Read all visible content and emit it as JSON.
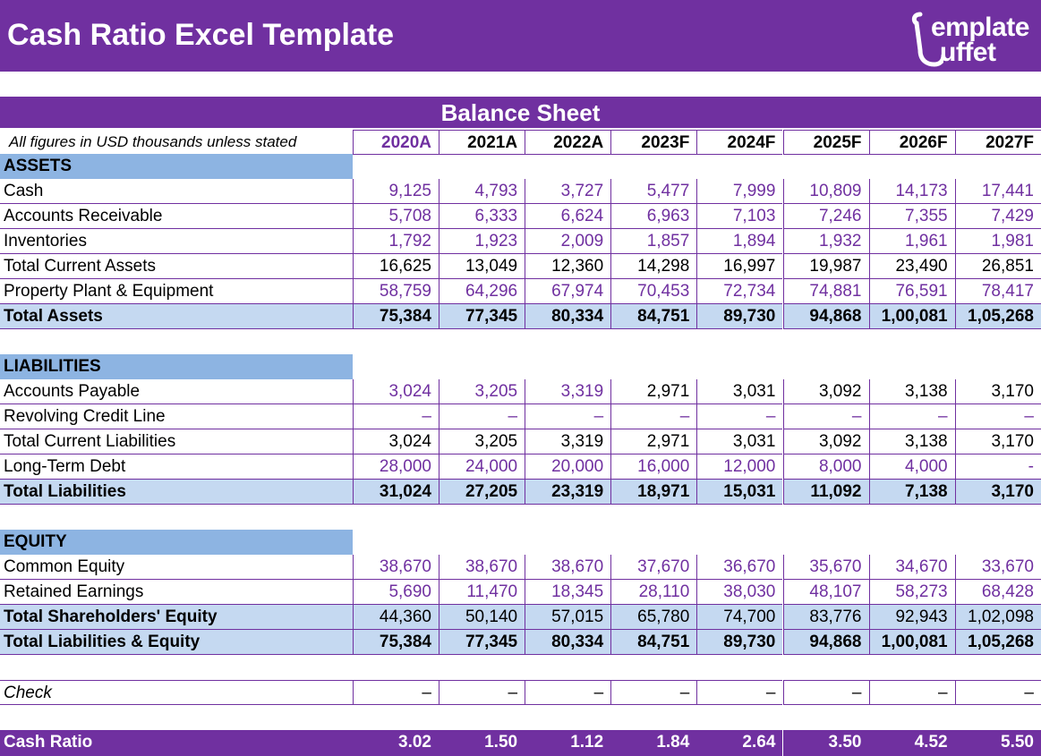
{
  "title": "Cash Ratio Excel Template",
  "logo": {
    "line1": "emplate",
    "line2": "uffet",
    "text": "Template Buffet"
  },
  "sheet_title": "Balance Sheet",
  "note": "All figures in USD thousands unless stated",
  "years": [
    "2020A",
    "2021A",
    "2022A",
    "2023F",
    "2024F",
    "2025F",
    "2026F",
    "2027F"
  ],
  "colors": {
    "brand": "#7030a0",
    "section": "#8db4e2",
    "total": "#c5d9f1"
  },
  "rows": [
    {
      "type": "section",
      "label": "ASSETS"
    },
    {
      "type": "input",
      "label": "Cash",
      "values": [
        "9,125",
        "4,793",
        "3,727",
        "5,477",
        "7,999",
        "10,809",
        "14,173",
        "17,441"
      ]
    },
    {
      "type": "input",
      "label": "Accounts Receivable",
      "values": [
        "5,708",
        "6,333",
        "6,624",
        "6,963",
        "7,103",
        "7,246",
        "7,355",
        "7,429"
      ]
    },
    {
      "type": "input",
      "label": "Inventories",
      "values": [
        "1,792",
        "1,923",
        "2,009",
        "1,857",
        "1,894",
        "1,932",
        "1,961",
        "1,981"
      ]
    },
    {
      "type": "calc",
      "label": "Total Current Assets",
      "values": [
        "16,625",
        "13,049",
        "12,360",
        "14,298",
        "16,997",
        "19,987",
        "23,490",
        "26,851"
      ]
    },
    {
      "type": "input",
      "label": "Property Plant & Equipment",
      "values": [
        "58,759",
        "64,296",
        "67,974",
        "70,453",
        "72,734",
        "74,881",
        "76,591",
        "78,417"
      ]
    },
    {
      "type": "total",
      "label": "Total Assets",
      "values": [
        "75,384",
        "77,345",
        "80,334",
        "84,751",
        "89,730",
        "94,868",
        "1,00,081",
        "1,05,268"
      ]
    },
    {
      "type": "blank"
    },
    {
      "type": "section",
      "label": "LIABILITIES"
    },
    {
      "type": "input",
      "label": "Accounts Payable",
      "values": [
        "3,024",
        "3,205",
        "3,319",
        "2,971",
        "3,031",
        "3,092",
        "3,138",
        "3,170"
      ],
      "black_from": 3
    },
    {
      "type": "input",
      "label": "Revolving Credit Line",
      "values": [
        "–",
        "–",
        "–",
        "–",
        "–",
        "–",
        "–",
        "–"
      ]
    },
    {
      "type": "calc",
      "label": "Total Current Liabilities",
      "values": [
        "3,024",
        "3,205",
        "3,319",
        "2,971",
        "3,031",
        "3,092",
        "3,138",
        "3,170"
      ]
    },
    {
      "type": "input",
      "label": "Long-Term Debt",
      "values": [
        "28,000",
        "24,000",
        "20,000",
        "16,000",
        "12,000",
        "8,000",
        "4,000",
        "-"
      ]
    },
    {
      "type": "total",
      "label": "Total Liabilities",
      "values": [
        "31,024",
        "27,205",
        "23,319",
        "18,971",
        "15,031",
        "11,092",
        "7,138",
        "3,170"
      ]
    },
    {
      "type": "blank"
    },
    {
      "type": "section",
      "label": "EQUITY"
    },
    {
      "type": "input",
      "label": "Common Equity",
      "values": [
        "38,670",
        "38,670",
        "38,670",
        "37,670",
        "36,670",
        "35,670",
        "34,670",
        "33,670"
      ]
    },
    {
      "type": "input",
      "label": "Retained Earnings",
      "values": [
        "5,690",
        "11,470",
        "18,345",
        "28,110",
        "38,030",
        "48,107",
        "58,273",
        "68,428"
      ]
    },
    {
      "type": "total",
      "label": "Total Shareholders' Equity",
      "values": [
        "44,360",
        "50,140",
        "57,015",
        "65,780",
        "74,700",
        "83,776",
        "92,943",
        "1,02,098"
      ],
      "normal_weight": true
    },
    {
      "type": "total",
      "label": "Total Liabilities & Equity",
      "values": [
        "75,384",
        "77,345",
        "80,334",
        "84,751",
        "89,730",
        "94,868",
        "1,00,081",
        "1,05,268"
      ]
    },
    {
      "type": "blank"
    },
    {
      "type": "check",
      "label": "Check",
      "values": [
        "–",
        "–",
        "–",
        "–",
        "–",
        "–",
        "–",
        "–"
      ]
    },
    {
      "type": "blank"
    },
    {
      "type": "ratio",
      "label": "Cash Ratio",
      "values": [
        "3.02",
        "1.50",
        "1.12",
        "1.84",
        "2.64",
        "3.50",
        "4.52",
        "5.50"
      ]
    }
  ]
}
